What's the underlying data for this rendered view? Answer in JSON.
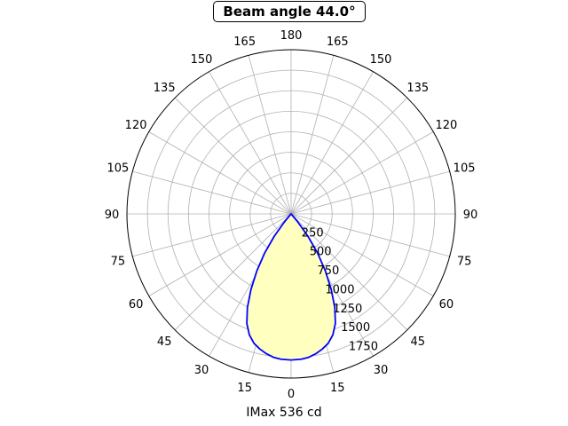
{
  "title": "Beam angle 44.0°",
  "xlabel": "IMax 536 cd",
  "colors": {
    "curve": "#0000ff",
    "fill": "#ffffc0",
    "grid": "#b0b0b0"
  },
  "chart_data": {
    "type": "polar-area",
    "title": "Beam angle 44.0°",
    "xlabel": "IMax 536 cd",
    "angle_ticks_deg": [
      180,
      165,
      150,
      135,
      120,
      105,
      90,
      75,
      60,
      45,
      30,
      15,
      0
    ],
    "radial_ticks": [
      250,
      500,
      750,
      1000,
      1250,
      1500,
      1750
    ],
    "rlim": [
      0,
      2000
    ],
    "grid": true,
    "series": [
      {
        "angles_deg": [
          -41,
          -40,
          -37,
          -34,
          -31,
          -28,
          -25,
          -22,
          -19,
          -16,
          -13,
          -10,
          -7,
          -4,
          0,
          4,
          7,
          10,
          13,
          16,
          19,
          22,
          25,
          28,
          31,
          34,
          37,
          40,
          41
        ],
        "values": [
          0,
          120,
          340,
          580,
          810,
          1040,
          1260,
          1440,
          1560,
          1640,
          1690,
          1730,
          1760,
          1775,
          1780,
          1775,
          1760,
          1730,
          1690,
          1640,
          1560,
          1440,
          1260,
          1040,
          810,
          580,
          340,
          120,
          0
        ]
      }
    ]
  }
}
